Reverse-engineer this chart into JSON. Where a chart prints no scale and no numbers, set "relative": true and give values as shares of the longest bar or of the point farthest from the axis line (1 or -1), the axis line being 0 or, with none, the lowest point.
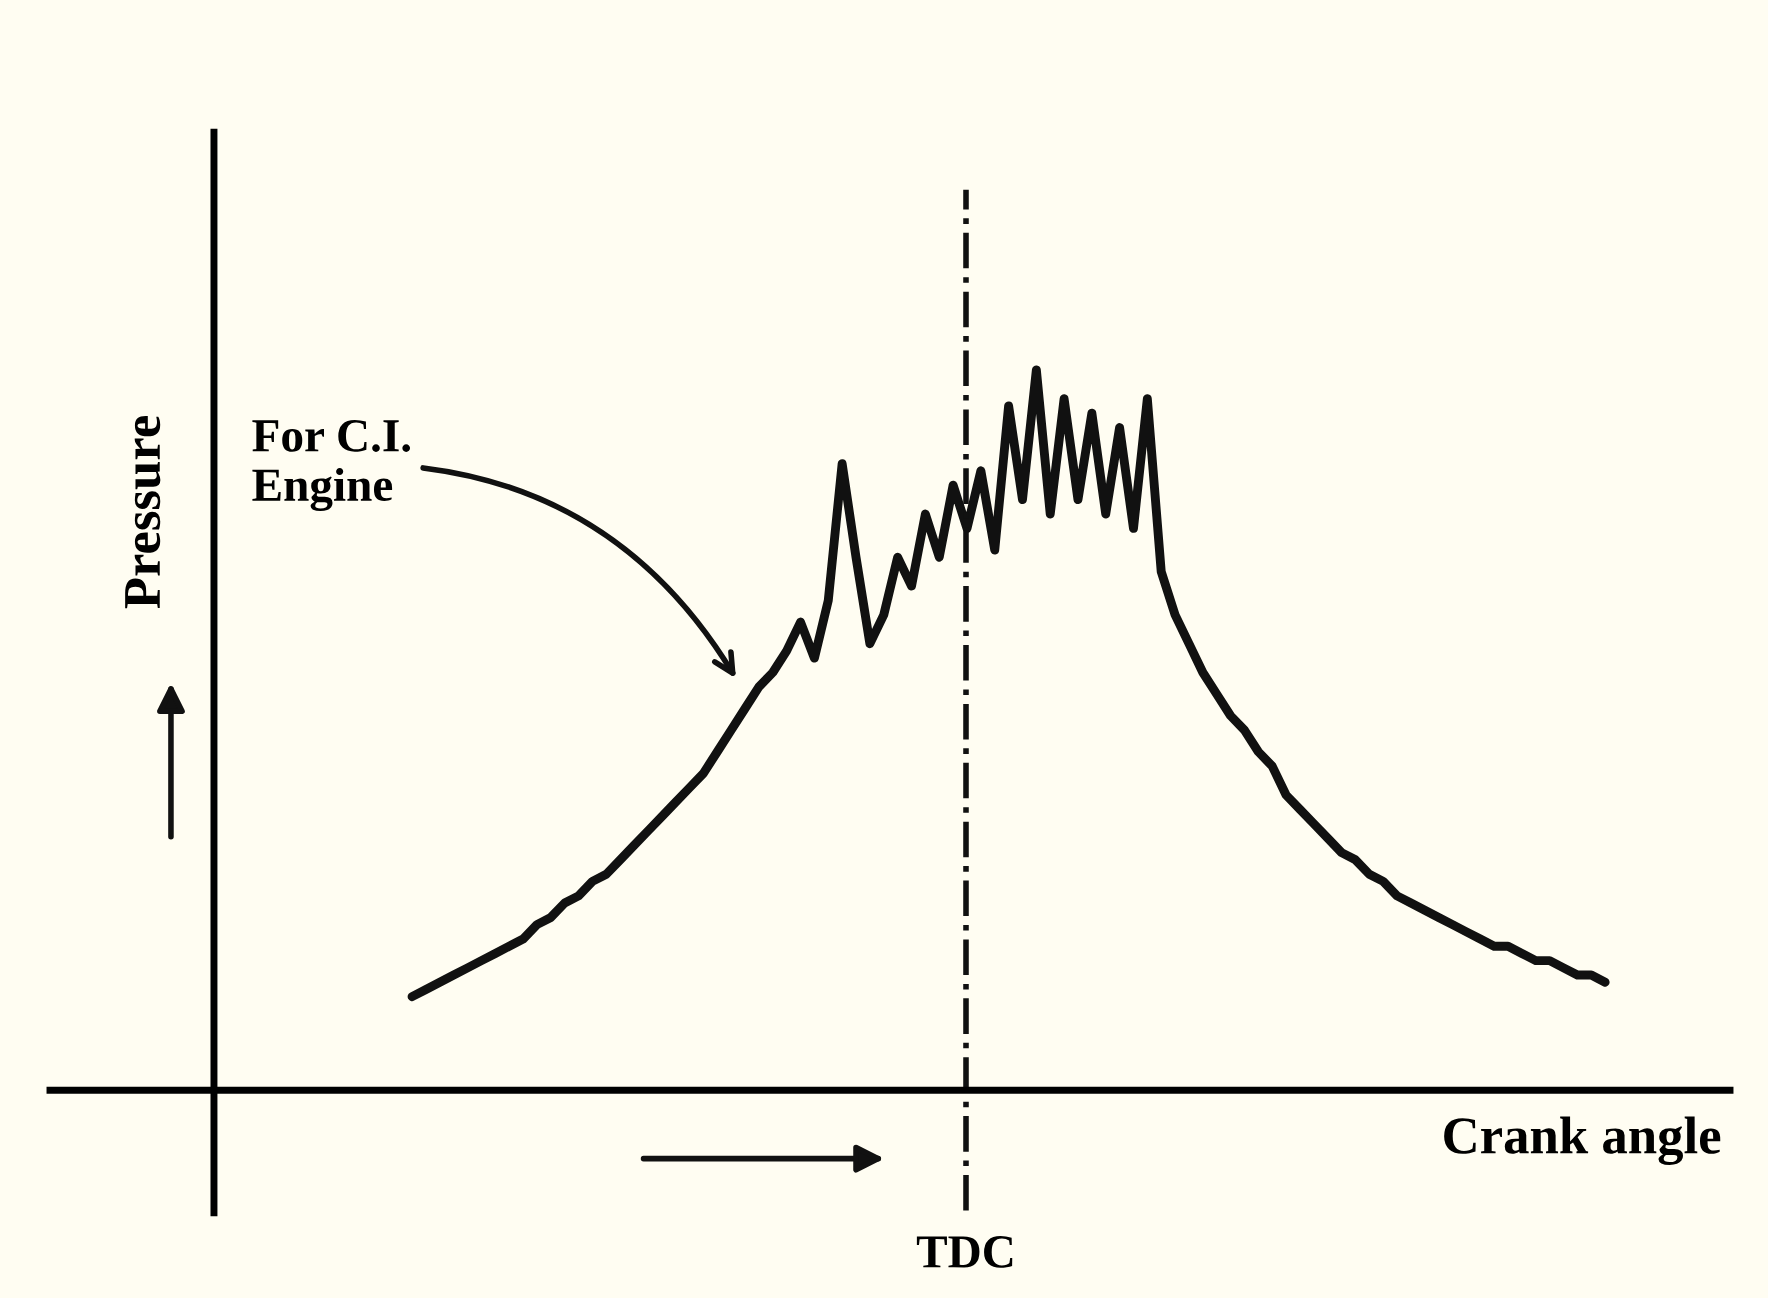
{
  "chart_data": {
    "type": "line",
    "relative": true,
    "xlabel": "Crank angle",
    "ylabel": "Pressure",
    "categories": [
      null,
      null,
      null,
      null,
      null,
      null,
      null,
      null,
      null,
      null,
      null,
      null,
      null,
      null,
      null,
      null,
      null,
      null,
      null,
      null,
      null,
      null,
      null,
      null,
      null,
      null,
      null,
      null,
      null,
      null,
      null,
      null,
      null,
      null,
      null,
      null,
      null,
      null,
      null,
      null,
      null,
      null,
      null,
      null,
      null,
      null,
      null,
      null,
      null,
      null,
      null,
      null,
      null,
      null,
      null,
      null,
      null,
      null,
      null,
      null,
      null,
      null,
      null,
      null,
      null,
      null,
      null,
      null,
      null,
      null,
      null,
      null,
      null,
      null,
      null,
      null,
      null,
      null,
      null,
      null,
      null,
      null,
      null,
      null,
      null,
      null,
      null
    ],
    "series": [
      {
        "color": "#111111",
        "values": [
          0.13,
          0.14,
          0.15,
          0.16,
          0.17,
          0.18,
          0.19,
          0.2,
          0.21,
          0.23,
          0.24,
          0.26,
          0.27,
          0.29,
          0.3,
          0.32,
          0.34,
          0.36,
          0.38,
          0.4,
          0.42,
          0.44,
          0.47,
          0.5,
          0.53,
          0.56,
          0.58,
          0.61,
          0.65,
          0.6,
          0.68,
          0.87,
          0.74,
          0.62,
          0.66,
          0.74,
          0.7,
          0.8,
          0.74,
          0.84,
          0.78,
          0.86,
          0.75,
          0.95,
          0.82,
          1,
          0.8,
          0.96,
          0.82,
          0.94,
          0.8,
          0.92,
          0.78,
          0.96,
          0.72,
          0.66,
          0.62,
          0.58,
          0.55,
          0.52,
          0.5,
          0.47,
          0.45,
          0.41,
          0.39,
          0.37,
          0.35,
          0.33,
          0.32,
          0.3,
          0.29,
          0.27,
          0.26,
          0.25,
          0.24,
          0.23,
          0.22,
          0.21,
          0.2,
          0.2,
          0.19,
          0.18,
          0.18,
          0.17,
          0.16,
          0.16,
          0.15
        ]
      }
    ],
    "annotations": [
      "For C.I.\nEngine",
      "TDC"
    ],
    "legend": false,
    "marker": "none",
    "line_style": "solid"
  }
}
